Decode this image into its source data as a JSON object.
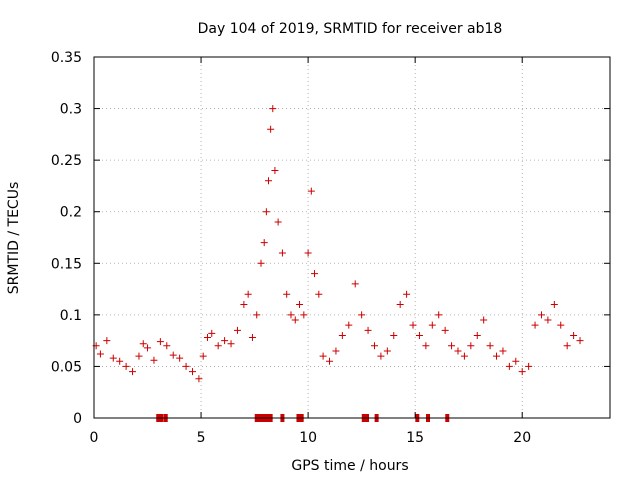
{
  "chart_data": {
    "type": "scatter",
    "title": "Day 104 of 2019, SRMTID for receiver ab18",
    "xlabel": "GPS time / hours",
    "ylabel": "SRMTID / TECUs",
    "xlim": [
      0,
      24.1
    ],
    "ylim": [
      0,
      0.35
    ],
    "grid": true,
    "marker": "plus",
    "color": "#cc0000",
    "x_ticks": [
      0,
      5,
      10,
      15,
      20
    ],
    "x_tick_labels": [
      "0",
      "5",
      "10",
      "15",
      "20"
    ],
    "y_ticks": [
      0,
      0.05,
      0.1,
      0.15,
      0.2,
      0.25,
      0.3,
      0.35
    ],
    "y_tick_labels": [
      "0",
      "0.05",
      "0.1",
      "0.15",
      "0.2",
      "0.25",
      "0.3",
      "0.35"
    ],
    "baseline_markers_hours": [
      3.0,
      3.15,
      3.35,
      7.6,
      7.75,
      7.85,
      7.95,
      8.05,
      8.15,
      8.25,
      8.8,
      9.55,
      9.7,
      12.6,
      12.75,
      13.2,
      15.1,
      15.6,
      16.5
    ],
    "series": [
      {
        "name": "SRMTID",
        "x": [
          0.1,
          0.3,
          0.6,
          0.9,
          1.2,
          1.5,
          1.8,
          2.1,
          2.3,
          2.5,
          2.8,
          3.1,
          3.4,
          3.7,
          4.0,
          4.3,
          4.6,
          4.9,
          5.1,
          5.3,
          5.5,
          5.8,
          6.1,
          6.4,
          6.7,
          7.0,
          7.2,
          7.4,
          7.6,
          7.8,
          7.95,
          8.05,
          8.15,
          8.25,
          8.35,
          8.45,
          8.6,
          8.8,
          9.0,
          9.2,
          9.4,
          9.6,
          9.8,
          10.0,
          10.15,
          10.3,
          10.5,
          10.7,
          11.0,
          11.3,
          11.6,
          11.9,
          12.2,
          12.5,
          12.8,
          13.1,
          13.4,
          13.7,
          14.0,
          14.3,
          14.6,
          14.9,
          15.2,
          15.5,
          15.8,
          16.1,
          16.4,
          16.7,
          17.0,
          17.3,
          17.6,
          17.9,
          18.2,
          18.5,
          18.8,
          19.1,
          19.4,
          19.7,
          20.0,
          20.3,
          20.6,
          20.9,
          21.2,
          21.5,
          21.8,
          22.1,
          22.4,
          22.7
        ],
        "y": [
          0.07,
          0.062,
          0.075,
          0.058,
          0.055,
          0.05,
          0.045,
          0.06,
          0.072,
          0.068,
          0.056,
          0.074,
          0.07,
          0.061,
          0.058,
          0.05,
          0.045,
          0.038,
          0.06,
          0.078,
          0.082,
          0.07,
          0.075,
          0.072,
          0.085,
          0.11,
          0.12,
          0.078,
          0.1,
          0.15,
          0.17,
          0.2,
          0.23,
          0.28,
          0.3,
          0.24,
          0.19,
          0.16,
          0.12,
          0.1,
          0.095,
          0.11,
          0.1,
          0.16,
          0.22,
          0.14,
          0.12,
          0.06,
          0.055,
          0.065,
          0.08,
          0.09,
          0.13,
          0.1,
          0.085,
          0.07,
          0.06,
          0.065,
          0.08,
          0.11,
          0.12,
          0.09,
          0.08,
          0.07,
          0.09,
          0.1,
          0.085,
          0.07,
          0.065,
          0.06,
          0.07,
          0.08,
          0.095,
          0.07,
          0.06,
          0.065,
          0.05,
          0.055,
          0.045,
          0.05,
          0.09,
          0.1,
          0.095,
          0.11,
          0.09,
          0.07,
          0.08,
          0.075
        ]
      }
    ]
  }
}
